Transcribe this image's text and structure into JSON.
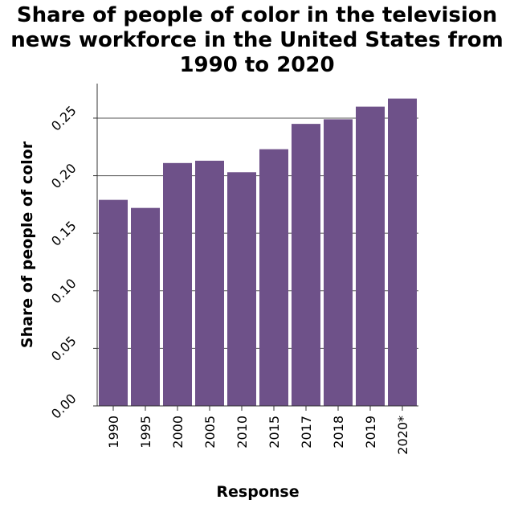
{
  "chart_data": {
    "type": "bar",
    "title_lines": [
      "Share of people of color in the television",
      "news workforce in the United States from",
      "1990 to 2020"
    ],
    "xlabel": "Response",
    "ylabel": "Share of people of color",
    "categories": [
      "1990",
      "1995",
      "2000",
      "2005",
      "2010",
      "2015",
      "2017",
      "2018",
      "2019",
      "2020*"
    ],
    "values": [
      0.179,
      0.172,
      0.211,
      0.213,
      0.203,
      0.223,
      0.245,
      0.249,
      0.26,
      0.267
    ],
    "yticks": [
      "0.00",
      "0.05",
      "0.10",
      "0.15",
      "0.20",
      "0.25"
    ],
    "ylim": [
      0,
      0.28
    ],
    "grid": "horizontal",
    "legend": "none",
    "bar_color": "#6e5189"
  }
}
